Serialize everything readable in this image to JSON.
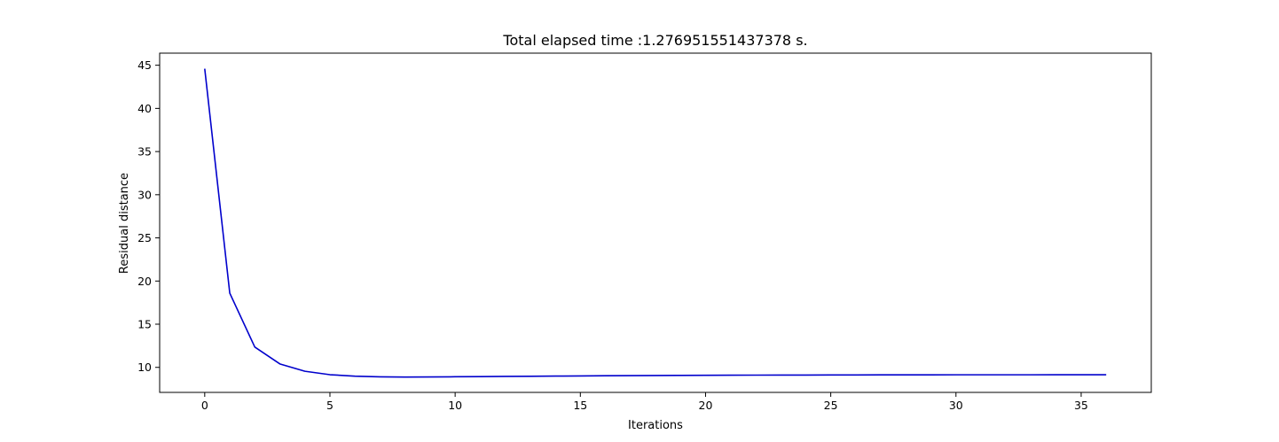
{
  "chart_data": {
    "type": "line",
    "title": "Total elapsed time :1.276951551437378 s.",
    "xlabel": "Iterations",
    "ylabel": "Residual distance",
    "xlim": [
      -1.8,
      37.8
    ],
    "ylim": [
      7.1,
      46.4
    ],
    "xticks": [
      0,
      5,
      10,
      15,
      20,
      25,
      30,
      35
    ],
    "yticks": [
      10,
      15,
      20,
      25,
      30,
      35,
      40,
      45
    ],
    "grid": false,
    "legend": "none",
    "series": [
      {
        "color": "#0000cc",
        "x": [
          0,
          1,
          2,
          3,
          4,
          5,
          6,
          7,
          8,
          9,
          10,
          11,
          12,
          13,
          14,
          15,
          16,
          17,
          18,
          19,
          20,
          21,
          22,
          23,
          24,
          25,
          26,
          27,
          28,
          29,
          30,
          31,
          32,
          33,
          34,
          35,
          36
        ],
        "y": [
          44.6,
          18.6,
          12.35,
          10.4,
          9.55,
          9.15,
          8.98,
          8.9,
          8.88,
          8.89,
          8.91,
          8.93,
          8.95,
          8.97,
          8.99,
          9.01,
          9.03,
          9.04,
          9.06,
          9.07,
          9.08,
          9.09,
          9.1,
          9.11,
          9.11,
          9.12,
          9.12,
          9.13,
          9.13,
          9.13,
          9.14,
          9.14,
          9.14,
          9.14,
          9.15,
          9.15,
          9.15
        ]
      }
    ]
  }
}
